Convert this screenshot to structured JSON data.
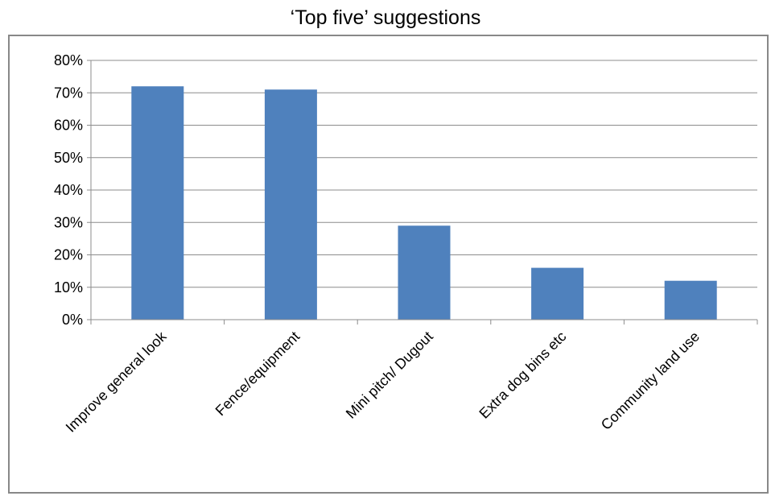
{
  "chart_data": {
    "type": "bar",
    "title": "‘Top five’ suggestions",
    "categories": [
      "Improve general look",
      "Fence/equipment",
      "Mini pitch/ Dugout",
      "Extra dog bins etc",
      "Community land use"
    ],
    "values": [
      72,
      71,
      29,
      16,
      12
    ],
    "ylim": [
      0,
      80
    ],
    "yticks": [
      0,
      10,
      20,
      30,
      40,
      50,
      60,
      70,
      80
    ],
    "tick_format": "percent",
    "grid": true,
    "bar_color": "#4F81BD",
    "grid_color": "#8C8C8C",
    "axis_color": "#8C8C8C",
    "legend": "none"
  }
}
